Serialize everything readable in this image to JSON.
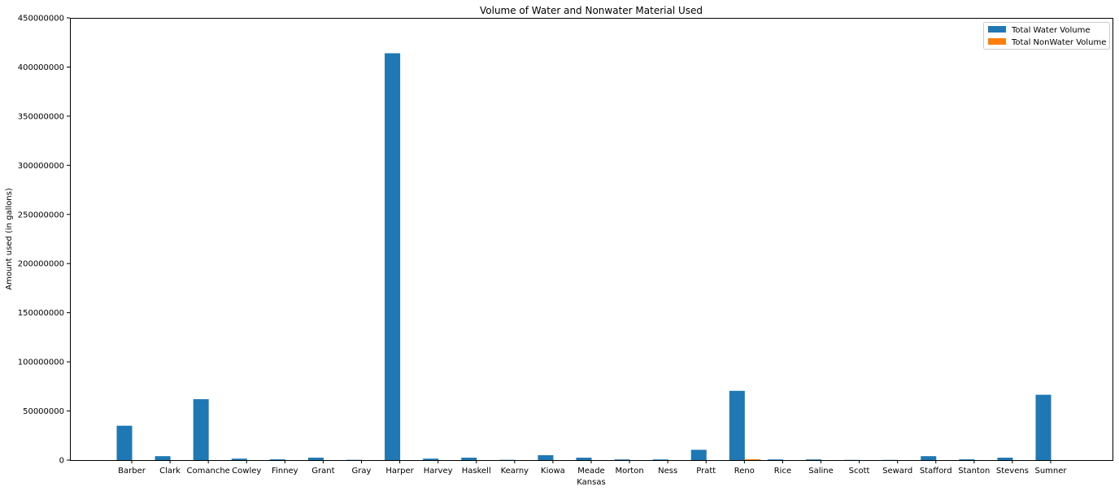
{
  "chart_data": {
    "type": "bar",
    "title": "Volume of Water and Nonwater Material Used",
    "xlabel": "Kansas",
    "ylabel": "Amount used (in gallons)",
    "ylim": [
      0,
      450000000
    ],
    "yticks": [
      "0",
      "50000000",
      "100000000",
      "150000000",
      "200000000",
      "250000000",
      "300000000",
      "350000000",
      "400000000",
      "450000000"
    ],
    "ytick_values": [
      0,
      50000000,
      100000000,
      150000000,
      200000000,
      250000000,
      300000000,
      350000000,
      400000000,
      450000000
    ],
    "legend_position": "top-right",
    "grid": false,
    "categories": [
      "Barber",
      "Clark",
      "Comanche",
      "Cowley",
      "Finney",
      "Grant",
      "Gray",
      "Harper",
      "Harvey",
      "Haskell",
      "Kearny",
      "Kiowa",
      "Meade",
      "Morton",
      "Ness",
      "Pratt",
      "Reno",
      "Rice",
      "Saline",
      "Scott",
      "Seward",
      "Stafford",
      "Stanton",
      "Stevens",
      "Sumner"
    ],
    "series": [
      {
        "name": "Total Water Volume",
        "color": "#1f77b4",
        "values": [
          35000000,
          4000000,
          62000000,
          1500000,
          800000,
          2500000,
          300000,
          414000000,
          1500000,
          2500000,
          300000,
          5000000,
          2500000,
          700000,
          700000,
          10500000,
          70500000,
          700000,
          700000,
          200000,
          200000,
          4000000,
          800000,
          2500000,
          66500000
        ]
      },
      {
        "name": "Total NonWater Volume",
        "color": "#ff7f0e",
        "values": [
          0,
          0,
          0,
          0,
          0,
          0,
          0,
          0,
          0,
          0,
          0,
          0,
          0,
          0,
          0,
          0,
          900000,
          0,
          0,
          0,
          0,
          0,
          0,
          0,
          0
        ]
      }
    ]
  }
}
